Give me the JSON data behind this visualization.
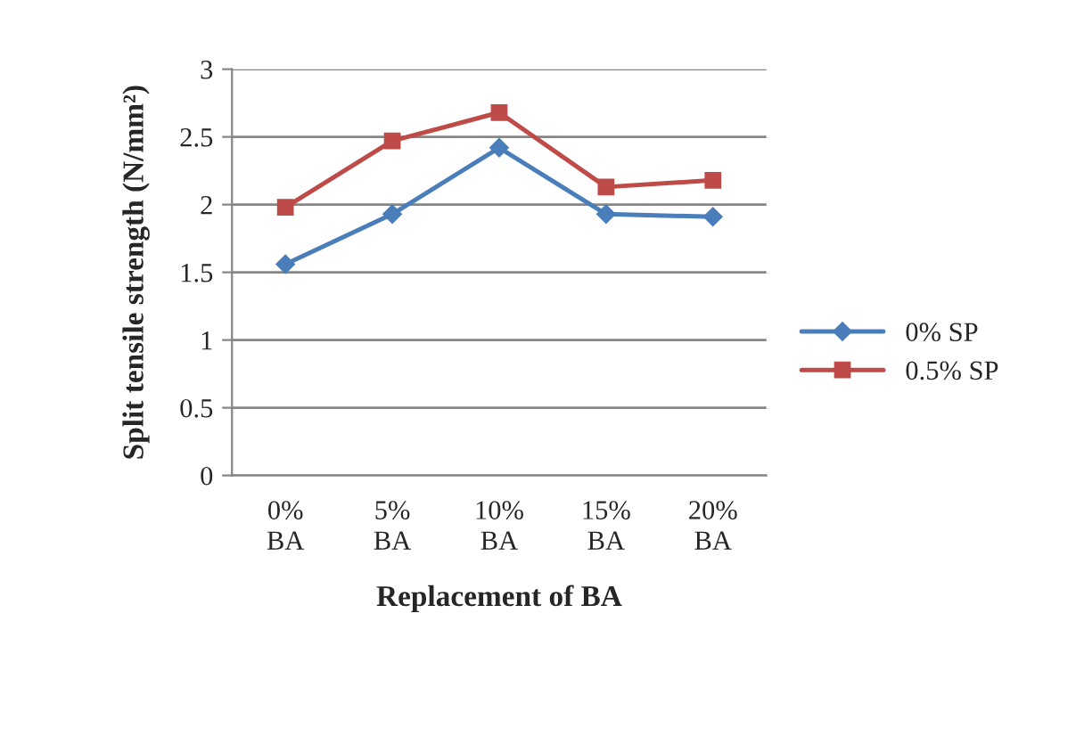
{
  "chart_data": {
    "type": "line",
    "xlabel": "Replacement of BA",
    "ylabel": "Split tensile strength (N/mm²)",
    "categories": [
      "0%\nBA",
      "5%\nBA",
      "10%\nBA",
      "15%\nBA",
      "20%\nBA"
    ],
    "series": [
      {
        "name": "0% SP",
        "color": "#4a7ebb",
        "marker": "diamond",
        "values": [
          1.56,
          1.93,
          2.42,
          1.93,
          1.91
        ]
      },
      {
        "name": "0.5% SP",
        "color": "#be4b48",
        "marker": "square",
        "values": [
          1.98,
          2.47,
          2.68,
          2.13,
          2.18
        ]
      }
    ],
    "ylim": [
      0,
      3
    ],
    "yticks": [
      0,
      0.5,
      1,
      1.5,
      2,
      2.5,
      3
    ],
    "grid": "y",
    "legend": "right",
    "line_style": "solid"
  }
}
